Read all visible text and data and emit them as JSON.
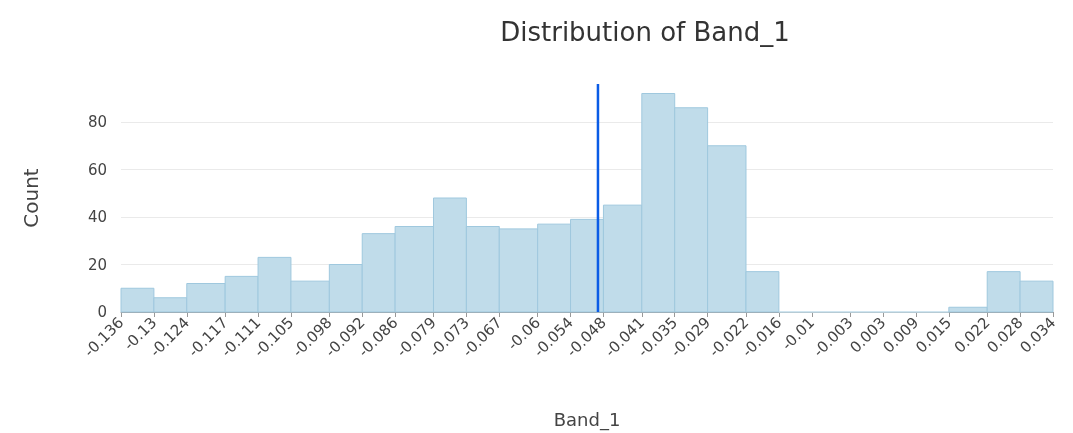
{
  "chart_data": {
    "type": "histogram",
    "title": "Distribution of Band_1",
    "xlabel": "Band_1",
    "ylabel": "Count",
    "bins": [
      -0.136,
      -0.13,
      -0.124,
      -0.117,
      -0.111,
      -0.105,
      -0.098,
      -0.092,
      -0.086,
      -0.079,
      -0.073,
      -0.067,
      -0.06,
      -0.054,
      -0.048,
      -0.041,
      -0.035,
      -0.029,
      -0.022,
      -0.016,
      -0.01,
      -0.003,
      0.003,
      0.009,
      0.015,
      0.022,
      0.028,
      0.034
    ],
    "values": [
      10,
      6,
      12,
      15,
      23,
      13,
      20,
      33,
      36,
      48,
      36,
      35,
      37,
      39,
      45,
      92,
      86,
      70,
      17,
      0,
      0,
      0,
      0,
      0,
      2,
      17,
      13
    ],
    "color": "#c0dcea",
    "xlim": [
      -0.136,
      0.034
    ],
    "xticks": [
      -0.136,
      -0.13,
      -0.124,
      -0.117,
      -0.111,
      -0.105,
      -0.098,
      -0.092,
      -0.086,
      -0.079,
      -0.073,
      -0.067,
      -0.06,
      -0.054,
      -0.048,
      -0.041,
      -0.035,
      -0.029,
      -0.022,
      -0.016,
      -0.01,
      -0.003,
      0.003,
      0.009,
      0.015,
      0.022,
      0.028,
      0.034
    ],
    "ylim": [
      0,
      96
    ],
    "yticks": [
      0,
      20,
      40,
      60,
      80
    ],
    "ref_lines": [
      {
        "axis": "x",
        "value": -0.049,
        "color": "#0a5ce6"
      }
    ],
    "grid": "y"
  }
}
